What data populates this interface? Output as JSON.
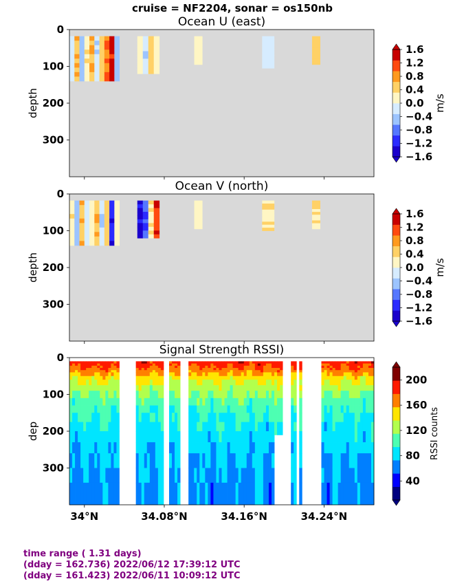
{
  "suptitle": "cruise = NF2204,  sonar = os150nb",
  "footer": {
    "line1": "time range ( 1.31 days)",
    "line2": "(dday = 162.736) 2022/06/12 17:39:12 UTC",
    "line3": "(dday = 161.423) 2022/06/11 10:09:12 UTC"
  },
  "colors": {
    "no_data": "#d9d9d9",
    "footer_text": "#800080",
    "velocity_scale": [
      "#1a00cc",
      "#2b2bff",
      "#5577ff",
      "#9cc4ff",
      "#d6ecff",
      "#fff6c4",
      "#ffd166",
      "#ff9a1f",
      "#ff4a10",
      "#c80000"
    ],
    "rssi_scale": [
      "#00007f",
      "#0000ff",
      "#007fff",
      "#00e5ff",
      "#4dffb2",
      "#b2ff4d",
      "#ffe500",
      "#ff7f00",
      "#ff1a00",
      "#7f0000"
    ]
  },
  "chart_data": [
    {
      "type": "heatmap",
      "title": "Ocean U (east)",
      "ylabel": "depth",
      "ylim": [
        400,
        0
      ],
      "yticks": [
        0,
        100,
        200,
        300
      ],
      "xlim": [
        33.985,
        34.29
      ],
      "xticks": [
        34.0,
        34.08,
        34.16,
        34.24
      ],
      "xticklabels_shown": false,
      "colorbar": {
        "label": "m/s",
        "ticks": [
          "1.6",
          "1.2",
          "0.8",
          "0.4",
          "0.0",
          "−0.4",
          "−0.8",
          "−1.2",
          "−1.6"
        ],
        "range": [
          -1.6,
          1.6
        ]
      },
      "segments": [
        {
          "lat": [
            33.985,
            34.035
          ],
          "depth": [
            18,
            140
          ],
          "values": [
            -0.2,
            0.6,
            -0.5,
            0.3,
            0.7,
            -0.3,
            0.4,
            1.0,
            1.5,
            -0.4
          ]
        },
        {
          "lat": [
            34.053,
            34.075
          ],
          "depth": [
            18,
            120
          ],
          "values": [
            0.2,
            -0.3,
            0.4,
            0.1
          ]
        },
        {
          "lat": [
            34.11,
            34.118
          ],
          "depth": [
            18,
            95
          ],
          "values": [
            0.1
          ]
        },
        {
          "lat": [
            34.178,
            34.19
          ],
          "depth": [
            18,
            105
          ],
          "values": [
            -0.2
          ]
        },
        {
          "lat": [
            34.228,
            34.236
          ],
          "depth": [
            18,
            95
          ],
          "values": [
            0.4
          ]
        }
      ]
    },
    {
      "type": "heatmap",
      "title": "Ocean V (north)",
      "ylabel": "depth",
      "ylim": [
        400,
        0
      ],
      "yticks": [
        0,
        100,
        200,
        300
      ],
      "xlim": [
        33.985,
        34.29
      ],
      "xticks": [
        34.0,
        34.08,
        34.16,
        34.24
      ],
      "xticklabels_shown": false,
      "colorbar": {
        "label": "m/s",
        "ticks": [
          "1.6",
          "1.2",
          "0.8",
          "0.4",
          "0.0",
          "−0.4",
          "−0.8",
          "−1.2",
          "−1.6"
        ],
        "range": [
          -1.6,
          1.6
        ]
      },
      "segments": [
        {
          "lat": [
            33.985,
            34.035
          ],
          "depth": [
            18,
            140
          ],
          "values": [
            0.3,
            -0.4,
            0.6,
            -0.2,
            0.2,
            0.6,
            -0.3,
            0.4,
            -1.2,
            0.1
          ]
        },
        {
          "lat": [
            34.053,
            34.075
          ],
          "depth": [
            18,
            120
          ],
          "values": [
            -1.4,
            -1.0,
            0.3,
            1.2
          ]
        },
        {
          "lat": [
            34.11,
            34.118
          ],
          "depth": [
            18,
            95
          ],
          "values": [
            0.2
          ]
        },
        {
          "lat": [
            34.178,
            34.19
          ],
          "depth": [
            18,
            100
          ],
          "values": [
            0.3
          ]
        },
        {
          "lat": [
            34.228,
            34.236
          ],
          "depth": [
            18,
            95
          ],
          "values": [
            0.3
          ]
        }
      ]
    },
    {
      "type": "heatmap",
      "title": "Signal Strength RSSI)",
      "ylabel": "dep",
      "ylim": [
        400,
        0
      ],
      "yticks": [
        0,
        100,
        200,
        300
      ],
      "xlim": [
        33.985,
        34.29
      ],
      "xticks": [
        34.0,
        34.08,
        34.16,
        34.24
      ],
      "xticklabels": [
        "34°N",
        "34.08°N",
        "34.16°N",
        "34.24°N"
      ],
      "colorbar": {
        "label": "RSSI counts",
        "ticks": [
          "200",
          "160",
          "120",
          "80",
          "40"
        ],
        "range": [
          10,
          220
        ]
      },
      "gaps_lat": [
        [
          34.036,
          34.051
        ],
        [
          34.08,
          34.086
        ],
        [
          34.097,
          34.104
        ],
        [
          34.198,
          34.208
        ],
        [
          34.212,
          34.215
        ],
        [
          34.219,
          34.237
        ]
      ],
      "profile_depth": [
        10,
        30,
        60,
        120,
        200,
        300,
        400
      ],
      "profile_rssi": [
        190,
        175,
        140,
        105,
        85,
        70,
        65
      ]
    }
  ]
}
